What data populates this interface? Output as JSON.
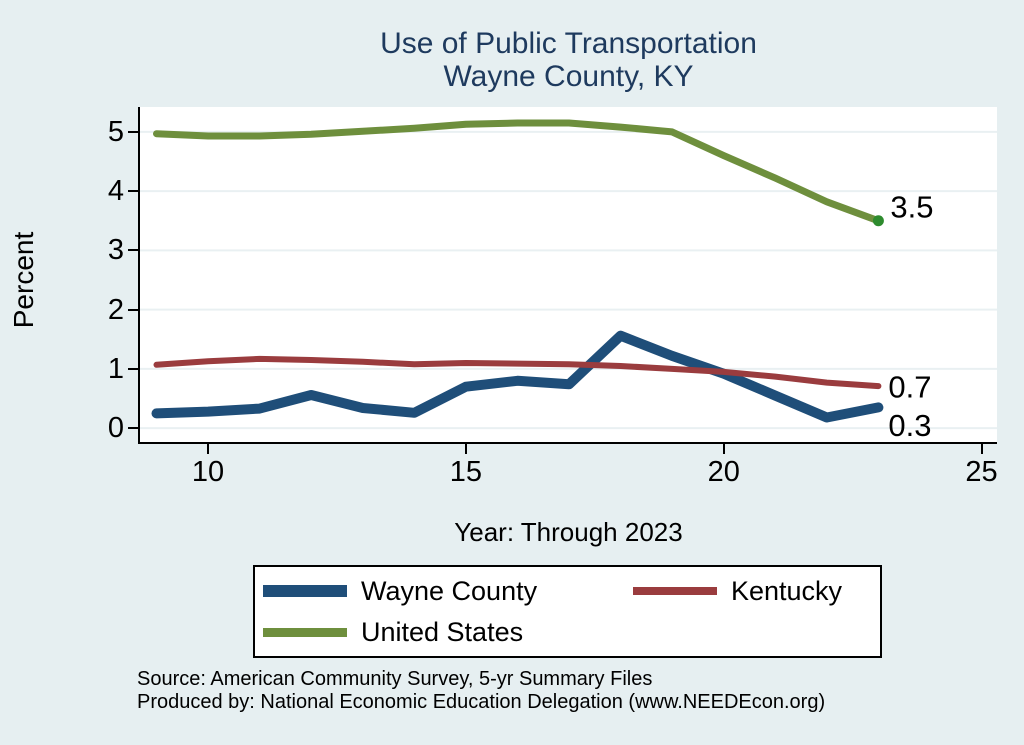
{
  "title": {
    "line1": "Use of Public Transportation",
    "line2": "Wayne County, KY",
    "color": "#1e3a5e"
  },
  "chart_data": {
    "type": "line",
    "title": "Use of Public Transportation Wayne County, KY",
    "xlabel": "Year: Through 2023",
    "ylabel": "Percent",
    "x": [
      9,
      10,
      11,
      12,
      13,
      14,
      15,
      16,
      17,
      18,
      19,
      20,
      21,
      22,
      23
    ],
    "series": [
      {
        "name": "Wayne County",
        "color": "#1f4e79",
        "line_width": 10,
        "values": [
          0.25,
          0.28,
          0.33,
          0.56,
          0.34,
          0.26,
          0.7,
          0.8,
          0.74,
          1.56,
          1.22,
          0.92,
          0.55,
          0.18,
          0.35
        ],
        "end_label": "0.3",
        "end_label_dx": 10,
        "end_label_dy": 18
      },
      {
        "name": "Kentucky",
        "color": "#9a3c3e",
        "line_width": 6,
        "values": [
          1.07,
          1.13,
          1.17,
          1.15,
          1.12,
          1.08,
          1.1,
          1.09,
          1.08,
          1.05,
          1.0,
          0.95,
          0.87,
          0.77,
          0.71
        ],
        "end_label": "0.7",
        "end_label_dx": 10,
        "end_label_dy": 1
      },
      {
        "name": "United States",
        "color": "#6e8f3d",
        "line_width": 7,
        "values": [
          4.97,
          4.93,
          4.93,
          4.96,
          5.01,
          5.06,
          5.13,
          5.15,
          5.15,
          5.08,
          5.0,
          4.6,
          4.22,
          3.82,
          3.5
        ],
        "end_label": "3.5",
        "end_label_dx": 12,
        "end_label_dy": -14,
        "end_marker_color": "#2e8b2e"
      }
    ],
    "x_ticks": [
      10,
      15,
      20,
      25
    ],
    "y_ticks": [
      0,
      1,
      2,
      3,
      4,
      5
    ],
    "x_range": [
      8.68,
      25.3
    ],
    "y_range": [
      -0.25,
      5.42
    ],
    "grid": true,
    "grid_color": "#e9f0f2",
    "legend_position": "bottom"
  },
  "footer": {
    "line1": "Source: American Community Survey, 5-yr Summary Files",
    "line2": "Produced by: National Economic Education Delegation (www.NEEDEcon.org)"
  }
}
